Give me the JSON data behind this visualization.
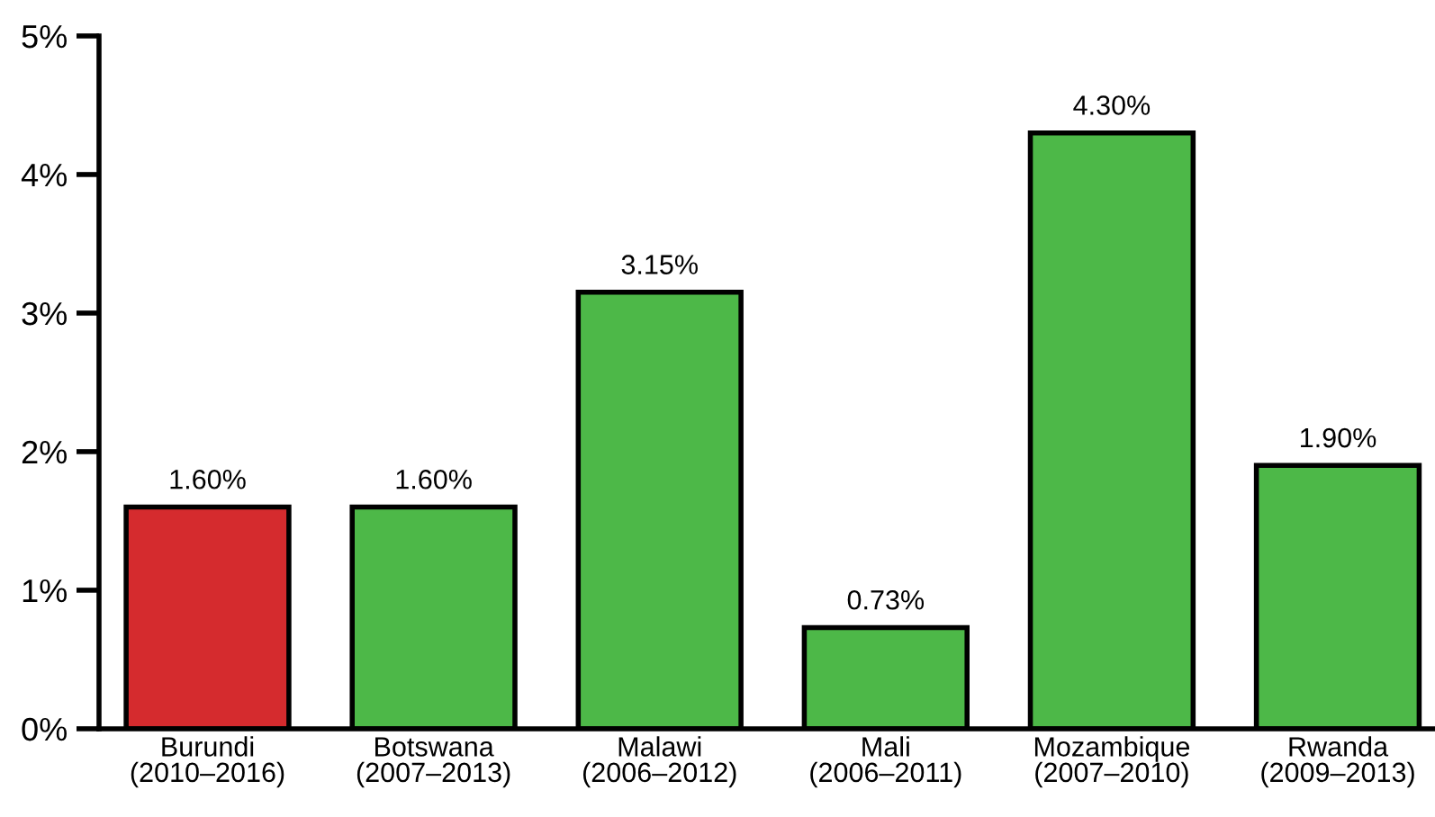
{
  "chart_data": {
    "type": "bar",
    "categories": [
      "Burundi\n(2010–2016)",
      "Botswana\n(2007–2013)",
      "Malawi\n(2006–2012)",
      "Mali\n(2006–2011)",
      "Mozambique\n(2007–2010)",
      "Rwanda\n(2009–2013)"
    ],
    "values": [
      1.6,
      1.6,
      3.15,
      0.73,
      4.3,
      1.9
    ],
    "colors": [
      "#d52b2e",
      "#4db848",
      "#4db848",
      "#4db848",
      "#4db848",
      "#4db848"
    ],
    "value_labels": [
      "1.60%",
      "1.60%",
      "3.15%",
      "0.73%",
      "4.30%",
      "1.90%"
    ],
    "ylim": [
      0,
      5
    ],
    "yticks": [
      {
        "value": 0,
        "label": "0%"
      },
      {
        "value": 1,
        "label": "1%"
      },
      {
        "value": 2,
        "label": "2%"
      },
      {
        "value": 3,
        "label": "3%"
      },
      {
        "value": 4,
        "label": "4%"
      },
      {
        "value": 5,
        "label": "5%"
      }
    ],
    "grid": false,
    "legend": false
  }
}
